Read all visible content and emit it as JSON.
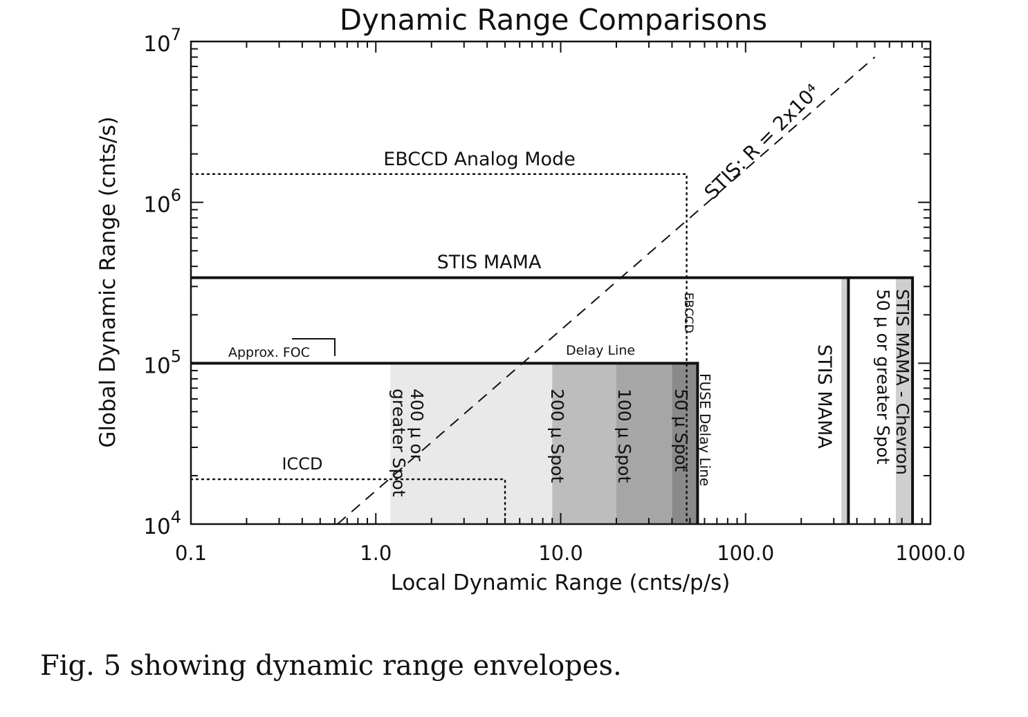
{
  "chart_data": {
    "type": "area",
    "title": "Dynamic Range Comparisons",
    "xlabel": "Local Dynamic Range (cnts/p/s)",
    "ylabel": "Global Dynamic Range (cnts/s)",
    "x_scale": "log",
    "y_scale": "log",
    "xlim": [
      0.1,
      1000
    ],
    "ylim": [
      10000,
      10000000
    ],
    "x_ticks": [
      {
        "value": 0.1,
        "label": "0.1"
      },
      {
        "value": 1,
        "label": "1.0"
      },
      {
        "value": 10,
        "label": "10.0"
      },
      {
        "value": 100,
        "label": "100.0"
      },
      {
        "value": 1000,
        "label": "1000.0"
      }
    ],
    "y_ticks": [
      {
        "value": 10000,
        "base": "10",
        "exp": "4"
      },
      {
        "value": 100000,
        "base": "10",
        "exp": "5"
      },
      {
        "value": 1000000,
        "base": "10",
        "exp": "6"
      },
      {
        "value": 10000000,
        "base": "10",
        "exp": "7"
      }
    ],
    "envelopes": [
      {
        "label": "EBCCD Analog Mode",
        "style": "dotted",
        "x_max": 48,
        "y_max": 1500000
      },
      {
        "label": "STIS MAMA",
        "style": "solid",
        "x_max": 800,
        "y_max": 340000
      },
      {
        "label": "Approx. FOC",
        "style": "solid",
        "x_max": 55,
        "y_max": 100000
      },
      {
        "label": "ICCD",
        "style": "dotted",
        "x_max": 5,
        "y_max": 19000
      }
    ],
    "shaded_regions": [
      {
        "label": "400 μ or greater Spot",
        "x_min": 1.2,
        "x_max": 9,
        "y_max": 100000,
        "shade": "#e9e9e9"
      },
      {
        "label": "200 μ Spot",
        "x_min": 9,
        "x_max": 20,
        "y_max": 100000,
        "shade": "#bdbdbd"
      },
      {
        "label": "100 μ Spot",
        "x_min": 20,
        "x_max": 40,
        "y_max": 100000,
        "shade": "#a6a6a6"
      },
      {
        "label": "50 μ Spot",
        "x_min": 40,
        "x_max": 55,
        "y_max": 100000,
        "shade": "#8a8a8a"
      },
      {
        "label": "STIS MAMA",
        "x_min": 330,
        "x_max": 360,
        "y_max": 340000,
        "shade": "#cfcfcf"
      },
      {
        "label": "STIS MAMA - Chevron 50 μ or greater Spot",
        "x_min": 650,
        "x_max": 800,
        "y_max": 340000,
        "shade": "#cfcfcf"
      }
    ],
    "lines": [
      {
        "label": "STIS: R = 2x10⁴",
        "style": "dashed",
        "x": [
          0.62,
          500
        ],
        "y": [
          10000,
          8000000
        ]
      }
    ],
    "annotations": {
      "ebccd_vertical": "EBCCD",
      "delay_line": "Delay Line",
      "fuse_delay_line": "FUSE Delay Line",
      "stis_mama_vertical": "STIS MAMA",
      "chevron_line1": "STIS MAMA - Chevron",
      "chevron_line2": "50 μ or greater Spot",
      "spot400_line1": "400 μ or",
      "spot400_line2": "greater Spot",
      "spot200": "200 μ Spot",
      "spot100": "100 μ Spot",
      "spot50": "50 μ Spot"
    }
  },
  "caption": "Fig. 5 showing dynamic range envelopes."
}
